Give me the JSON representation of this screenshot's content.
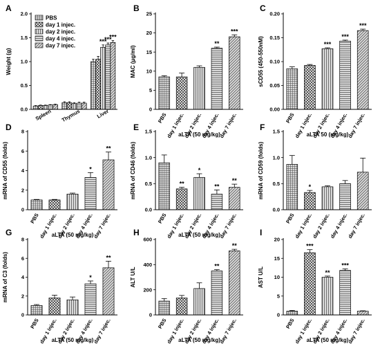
{
  "colors": {
    "bar_fill": "#d9d9d9",
    "pattern_ink": "#444444",
    "axis": "#000000"
  },
  "chart_data": [
    {
      "panel": "A",
      "type": "bar",
      "categories": [
        "Spleen",
        "Thymus",
        "Liver"
      ],
      "series": [
        {
          "name": "PBS",
          "pattern": "grid",
          "values": [
            0.07,
            0.14,
            1.0
          ],
          "errors": [
            0.01,
            0.02,
            0.05
          ],
          "sig": [
            "",
            "",
            ""
          ]
        },
        {
          "name": "day 1 injec.",
          "pattern": "check",
          "values": [
            0.08,
            0.14,
            1.05
          ],
          "errors": [
            0.01,
            0.02,
            0.06
          ],
          "sig": [
            "",
            "",
            ""
          ]
        },
        {
          "name": "day 2 injec.",
          "pattern": "vline",
          "values": [
            0.08,
            0.12,
            1.3
          ],
          "errors": [
            0.01,
            0.02,
            0.05
          ],
          "sig": [
            "",
            "",
            "***"
          ]
        },
        {
          "name": "day 4 injec.",
          "pattern": "hline",
          "values": [
            0.09,
            0.13,
            1.35
          ],
          "errors": [
            0.01,
            0.02,
            0.04
          ],
          "sig": [
            "",
            "",
            "***"
          ]
        },
        {
          "name": "day 7 injec.",
          "pattern": "diag",
          "values": [
            0.1,
            0.13,
            1.4
          ],
          "errors": [
            0.01,
            0.02,
            0.04
          ],
          "sig": [
            "",
            "",
            "***"
          ]
        }
      ],
      "ylabel": "Weight (g)",
      "ylim": [
        0,
        2.0
      ],
      "yticks": [
        "0.0",
        "0.5",
        "1.0",
        "1.5",
        "2.0"
      ],
      "xlabel": "",
      "legend": "top-left"
    },
    {
      "panel": "B",
      "type": "bar",
      "categories": [
        "PBS",
        "day 1 injec.",
        "day 2 injec.",
        "day 4 injec.",
        "day 7 injec."
      ],
      "patterns": [
        "grid",
        "check",
        "vline",
        "hline",
        "diag"
      ],
      "values": [
        8.5,
        8.5,
        11.0,
        16.0,
        19.0
      ],
      "errors": [
        0.3,
        1.0,
        0.4,
        0.3,
        0.5
      ],
      "sig": [
        "",
        "",
        "",
        "**",
        "***"
      ],
      "ylabel": "MAC (μg/ml)",
      "ylim": [
        0,
        25
      ],
      "yticks": [
        "0",
        "5",
        "10",
        "15",
        "20",
        "25"
      ],
      "xlabel": "aLTA (50 mg/kg)"
    },
    {
      "panel": "C",
      "type": "bar",
      "categories": [
        "PBS",
        "day 1 injec.",
        "day 2 injec.",
        "day 4 injec.",
        "day 7 injec."
      ],
      "patterns": [
        "grid",
        "check",
        "vline",
        "hline",
        "diag"
      ],
      "values": [
        0.085,
        0.092,
        0.127,
        0.143,
        0.165
      ],
      "errors": [
        0.004,
        0.002,
        0.002,
        0.002,
        0.003
      ],
      "sig": [
        "",
        "",
        "***",
        "***",
        "***"
      ],
      "ylabel": "sCD55 (450-550nM)",
      "ylim": [
        0,
        0.2
      ],
      "yticks": [
        "0.00",
        "0.05",
        "0.10",
        "0.15",
        "0.20"
      ],
      "xlabel": "aLTA 50 (mg/kg)"
    },
    {
      "panel": "D",
      "type": "bar",
      "categories": [
        "PBS",
        "day 1 injec.",
        "day 2 injec.",
        "day 4 injec.",
        "day 7 injec."
      ],
      "patterns": [
        "grid",
        "check",
        "vline",
        "hline",
        "diag"
      ],
      "values": [
        1.0,
        1.0,
        1.6,
        3.3,
        5.1
      ],
      "errors": [
        0.05,
        0.05,
        0.1,
        0.5,
        0.8
      ],
      "sig": [
        "",
        "",
        "",
        "*",
        "**"
      ],
      "ylabel": "mRNA of CD55 (folds)",
      "ylim": [
        0,
        8
      ],
      "yticks": [
        "0",
        "2",
        "4",
        "6",
        "8"
      ],
      "xlabel": "aLTA (50 mg/kg)"
    },
    {
      "panel": "E",
      "type": "bar",
      "categories": [
        "PBS",
        "day 1 injec.",
        "day 2 injec.",
        "day 4 injec.",
        "day 7 injec."
      ],
      "patterns": [
        "grid",
        "check",
        "vline",
        "hline",
        "diag"
      ],
      "values": [
        0.9,
        0.4,
        0.62,
        0.3,
        0.43
      ],
      "errors": [
        0.15,
        0.03,
        0.07,
        0.08,
        0.06
      ],
      "sig": [
        "",
        "**",
        "*",
        "**",
        "**"
      ],
      "ylabel": "mRNA of CD46 (folds)",
      "ylim": [
        0,
        1.5
      ],
      "yticks": [
        "0.0",
        "0.5",
        "1.0",
        "1.5"
      ],
      "xlabel": "aLTA (50 mg/kg)"
    },
    {
      "panel": "F",
      "type": "bar",
      "categories": [
        "PBS",
        "day 1 injec.",
        "day 2 injec.",
        "day 4 injec.",
        "day 7 injec."
      ],
      "patterns": [
        "grid",
        "check",
        "vline",
        "hline",
        "diag"
      ],
      "values": [
        0.87,
        0.33,
        0.44,
        0.5,
        0.72
      ],
      "errors": [
        0.17,
        0.04,
        0.02,
        0.06,
        0.27
      ],
      "sig": [
        "",
        "*",
        "",
        "",
        ""
      ],
      "ylabel": "mRNA of CD59 (folds)",
      "ylim": [
        0,
        1.5
      ],
      "yticks": [
        "0.0",
        "0.5",
        "1.0",
        "1.5"
      ],
      "xlabel": ""
    },
    {
      "panel": "G",
      "type": "bar",
      "categories": [
        "PBS",
        "day 1 injec.",
        "day 2 injec.",
        "day 4 injec.",
        "day 7 injec."
      ],
      "patterns": [
        "grid",
        "check",
        "vline",
        "hline",
        "diag"
      ],
      "values": [
        1.0,
        1.8,
        1.6,
        3.3,
        5.0
      ],
      "errors": [
        0.1,
        0.3,
        0.3,
        0.3,
        0.7
      ],
      "sig": [
        "",
        "",
        "",
        "*",
        "**"
      ],
      "ylabel": "mRNA of C3 (folds)",
      "ylim": [
        0,
        8
      ],
      "yticks": [
        "0",
        "2",
        "4",
        "6",
        "8"
      ],
      "xlabel": "aLTA (50 mg/kg)"
    },
    {
      "panel": "H",
      "type": "bar",
      "categories": [
        "PBS",
        "day 1 injec.",
        "day 2 injec.",
        "day 4 injec.",
        "day 7 injec."
      ],
      "patterns": [
        "grid",
        "check",
        "vline",
        "hline",
        "diag"
      ],
      "values": [
        110,
        135,
        210,
        350,
        510
      ],
      "errors": [
        20,
        20,
        45,
        10,
        12
      ],
      "sig": [
        "",
        "",
        "",
        "**",
        "**"
      ],
      "ylabel": "ALT U/L",
      "ylim": [
        0,
        600
      ],
      "yticks": [
        "0",
        "200",
        "400",
        "600"
      ],
      "xlabel": "aLTA (50 mg/kg)"
    },
    {
      "panel": "I",
      "type": "bar",
      "categories": [
        "PBS",
        "day 1 injec.",
        "day 2 injec.",
        "day 4 injec.",
        "day 7 injec."
      ],
      "patterns": [
        "grid",
        "check",
        "vline",
        "hline",
        "diag"
      ],
      "values": [
        1.0,
        16.5,
        10.0,
        11.8,
        1.0
      ],
      "errors": [
        0.2,
        0.8,
        0.3,
        0.4,
        0.1
      ],
      "sig": [
        "",
        "***",
        "**",
        "***",
        ""
      ],
      "ylabel": "AST U/L",
      "ylim": [
        0,
        20
      ],
      "yticks": [
        "0",
        "5",
        "10",
        "15",
        "20"
      ],
      "xlabel": "aLTA (50 mg/kg)"
    }
  ]
}
